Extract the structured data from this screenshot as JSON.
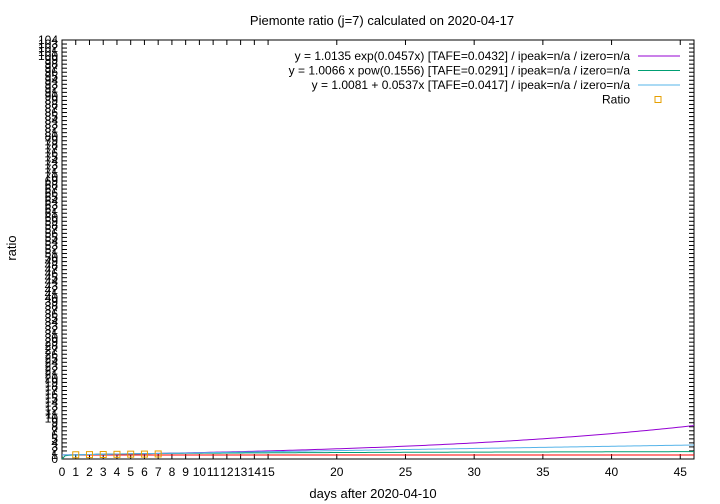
{
  "chart_data": {
    "type": "line",
    "title": "Piemonte ratio (j=7) calculated on 2020-04-17",
    "xlabel": "days after 2020-04-10",
    "ylabel": "ratio",
    "xlim": [
      0,
      46
    ],
    "ylim": [
      0,
      104
    ],
    "x_ticks": [
      0,
      1,
      2,
      3,
      4,
      5,
      6,
      7,
      8,
      9,
      10,
      11,
      12,
      13,
      14,
      15,
      20,
      25,
      30,
      35,
      40,
      45
    ],
    "y_ticks": [
      0,
      1,
      2,
      3,
      4,
      5,
      6,
      7,
      8,
      9,
      10,
      11,
      12,
      13,
      14,
      15,
      16,
      17,
      18,
      19,
      20,
      21,
      22,
      23,
      24,
      25,
      26,
      27,
      28,
      29,
      30,
      31,
      32,
      33,
      34,
      35,
      36,
      37,
      38,
      39,
      40,
      41,
      42,
      43,
      44,
      45,
      46,
      47,
      48,
      49,
      50,
      51,
      52,
      53,
      54,
      55,
      56,
      57,
      58,
      59,
      60,
      61,
      62,
      63,
      64,
      65,
      66,
      67,
      68,
      69,
      70,
      71,
      72,
      73,
      74,
      75,
      76,
      77,
      78,
      79,
      80,
      81,
      82,
      83,
      84,
      85,
      86,
      87,
      88,
      89,
      90,
      91,
      92,
      93,
      94,
      95,
      96,
      97,
      98,
      99,
      100,
      101,
      102,
      103,
      104
    ],
    "legend_position": "top-right",
    "series": [
      {
        "name": "y = 1.0135 exp(0.0457x)  [TAFE=0.0432] / ipeak=n/a / izero=n/a",
        "kind": "line",
        "color": "#9400d3",
        "formula": "exp",
        "a": 1.0135,
        "b": 0.0457
      },
      {
        "name": "y = 1.0066 x pow(0.1556)  [TAFE=0.0291] / ipeak=n/a / izero=n/a",
        "kind": "line",
        "color": "#009e73",
        "formula": "pow",
        "a": 1.0066,
        "b": 0.1556
      },
      {
        "name": "y = 1.0081 + 0.0537x  [TAFE=0.0417] / ipeak=n/a / izero=n/a",
        "kind": "line",
        "color": "#56b4e9",
        "formula": "lin",
        "a": 1.0081,
        "b": 0.0537
      },
      {
        "name": "Ratio",
        "kind": "points",
        "color": "#e69f00",
        "x": [
          1,
          2,
          3,
          4,
          5,
          6,
          7
        ],
        "y": [
          1.05,
          1.09,
          1.12,
          1.16,
          1.2,
          1.22,
          1.25
        ]
      }
    ],
    "reference_line": {
      "y": 1,
      "color": "#ff0000"
    }
  }
}
